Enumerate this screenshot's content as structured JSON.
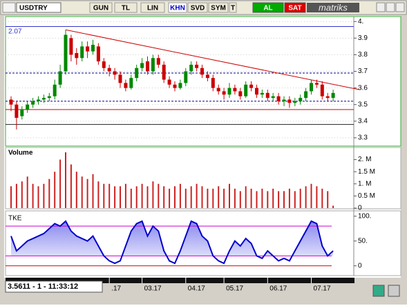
{
  "toolbar": {
    "symbol": "USDTRY",
    "buttons": [
      "GUN",
      "TL",
      "LIN",
      "KHN",
      "SVD",
      "SYM",
      "T"
    ],
    "buy": "AL",
    "sell": "SAT",
    "brand": "matriks"
  },
  "status": "3.5611 - 1 - 11:33:12",
  "chart_data": {
    "type": "candlestick",
    "last_price_label": "2.07",
    "categories": [
      null,
      null,
      null,
      null,
      null,
      null,
      null,
      null,
      null,
      null,
      null,
      null,
      null,
      null,
      null,
      null,
      null,
      null,
      ".17",
      null,
      null,
      null,
      null,
      null,
      "03.17",
      null,
      null,
      null,
      null,
      null,
      null,
      null,
      "04.17",
      null,
      null,
      null,
      null,
      null,
      null,
      "05.17",
      null,
      null,
      null,
      null,
      null,
      null,
      null,
      "06.17",
      null,
      null,
      null,
      null,
      null,
      null,
      null,
      "07.17",
      null,
      null,
      null,
      null
    ],
    "open": [
      3.53,
      3.5,
      3.43,
      3.47,
      3.5,
      3.52,
      3.53,
      3.54,
      3.55,
      3.62,
      3.7,
      3.9,
      3.81,
      3.78,
      3.85,
      3.82,
      3.85,
      3.76,
      3.72,
      3.7,
      3.68,
      3.63,
      3.6,
      3.66,
      3.72,
      3.76,
      3.7,
      3.78,
      3.74,
      3.65,
      3.62,
      3.6,
      3.63,
      3.7,
      3.74,
      3.72,
      3.68,
      3.66,
      3.6,
      3.58,
      3.56,
      3.6,
      3.58,
      3.55,
      3.62,
      3.6,
      3.56,
      3.57,
      3.54,
      3.55,
      3.52,
      3.53,
      3.51,
      3.52,
      3.54,
      3.58,
      3.63,
      3.62,
      3.55,
      3.54
    ],
    "high": [
      3.55,
      3.52,
      3.49,
      3.52,
      3.54,
      3.55,
      3.56,
      3.57,
      3.65,
      3.74,
      3.95,
      3.92,
      3.84,
      3.88,
      3.88,
      3.89,
      3.87,
      3.78,
      3.74,
      3.72,
      3.7,
      3.65,
      3.68,
      3.74,
      3.78,
      3.79,
      3.8,
      3.8,
      3.76,
      3.67,
      3.64,
      3.65,
      3.72,
      3.76,
      3.76,
      3.74,
      3.7,
      3.68,
      3.62,
      3.6,
      3.63,
      3.62,
      3.6,
      3.64,
      3.64,
      3.62,
      3.59,
      3.59,
      3.57,
      3.57,
      3.55,
      3.55,
      3.54,
      3.56,
      3.6,
      3.65,
      3.65,
      3.64,
      3.57,
      3.59
    ],
    "low": [
      3.46,
      3.35,
      3.41,
      3.45,
      3.48,
      3.5,
      3.51,
      3.52,
      3.53,
      3.6,
      3.68,
      3.76,
      3.74,
      3.76,
      3.78,
      3.8,
      3.74,
      3.7,
      3.67,
      3.65,
      3.6,
      3.58,
      3.59,
      3.64,
      3.7,
      3.68,
      3.68,
      3.72,
      3.63,
      3.6,
      3.58,
      3.59,
      3.61,
      3.68,
      3.7,
      3.66,
      3.64,
      3.58,
      3.56,
      3.53,
      3.54,
      3.56,
      3.53,
      3.54,
      3.58,
      3.54,
      3.54,
      3.52,
      3.52,
      3.5,
      3.49,
      3.48,
      3.49,
      3.5,
      3.52,
      3.56,
      3.6,
      3.53,
      3.52,
      3.52
    ],
    "close": [
      3.5,
      3.42,
      3.47,
      3.5,
      3.52,
      3.53,
      3.54,
      3.55,
      3.62,
      3.7,
      3.92,
      3.8,
      3.78,
      3.85,
      3.82,
      3.86,
      3.76,
      3.72,
      3.7,
      3.68,
      3.63,
      3.6,
      3.66,
      3.72,
      3.75,
      3.7,
      3.78,
      3.74,
      3.65,
      3.62,
      3.6,
      3.63,
      3.7,
      3.74,
      3.72,
      3.68,
      3.66,
      3.6,
      3.58,
      3.56,
      3.6,
      3.58,
      3.55,
      3.62,
      3.6,
      3.56,
      3.57,
      3.54,
      3.55,
      3.52,
      3.53,
      3.51,
      3.52,
      3.54,
      3.58,
      3.63,
      3.62,
      3.55,
      3.54,
      3.57
    ],
    "up_color": "#008800",
    "down_color": "#cc0000",
    "ylim": [
      3.25,
      4.03
    ],
    "yticks": [
      {
        "value": 4,
        "label": "4."
      },
      3.9,
      3.8,
      3.7,
      3.6,
      3.5,
      3.4,
      3.3
    ],
    "trendline": {
      "index": [
        10,
        63.75
      ],
      "values": [
        3.95,
        3.59
      ],
      "color": "#cc0000"
    },
    "levels": [
      {
        "value": 3.97,
        "color": "#3333cc",
        "dashed": false
      },
      {
        "value": 3.69,
        "color": "#000088",
        "dashed": true
      },
      {
        "value": 3.52,
        "color": "#000088",
        "dashed": true
      },
      {
        "value": 3.47,
        "color": "#cc0000",
        "dashed": false
      },
      {
        "value": 3.38,
        "color": "#222222",
        "dashed": false
      }
    ],
    "volume": {
      "title": "Volume",
      "color": "#cc2222",
      "ylim": [
        0,
        2500000
      ],
      "yticks": [
        {
          "value": 2000000,
          "label": "2. M"
        },
        {
          "value": 1500000,
          "label": "1.5 M"
        },
        {
          "value": 1000000,
          "label": "1. M"
        },
        {
          "value": 500000,
          "label": "0.5 M"
        },
        0
      ],
      "values": [
        900000,
        1000000,
        1100000,
        1300000,
        1000000,
        900000,
        1000000,
        1200000,
        1500000,
        2000000,
        2300000,
        1800000,
        1500000,
        1300000,
        1200000,
        1400000,
        1100000,
        1000000,
        1000000,
        900000,
        900000,
        1000000,
        800000,
        900000,
        1000000,
        900000,
        1100000,
        1000000,
        900000,
        800000,
        900000,
        1000000,
        800000,
        900000,
        1000000,
        900000,
        800000,
        800000,
        900000,
        800000,
        1000000,
        800000,
        700000,
        900000,
        800000,
        700000,
        800000,
        700000,
        800000,
        700000,
        700000,
        800000,
        700000,
        800000,
        900000,
        1000000,
        900000,
        800000,
        700000,
        100000
      ]
    },
    "tke": {
      "title": "TKE",
      "color": "#0000cc",
      "ylim": [
        -17,
        108
      ],
      "yticks": [
        {
          "value": 100,
          "label": "100."
        },
        {
          "value": 50,
          "label": "50."
        },
        0
      ],
      "bands": [
        80,
        20
      ],
      "band_color": "#cc00cc",
      "values": [
        60,
        30,
        40,
        50,
        55,
        60,
        65,
        75,
        85,
        80,
        90,
        70,
        60,
        55,
        50,
        60,
        40,
        20,
        10,
        5,
        10,
        40,
        70,
        85,
        90,
        60,
        80,
        70,
        30,
        10,
        5,
        30,
        60,
        90,
        85,
        60,
        50,
        20,
        10,
        5,
        30,
        50,
        40,
        55,
        45,
        20,
        15,
        30,
        20,
        10,
        15,
        10,
        30,
        50,
        70,
        90,
        85,
        40,
        20,
        30
      ]
    }
  }
}
